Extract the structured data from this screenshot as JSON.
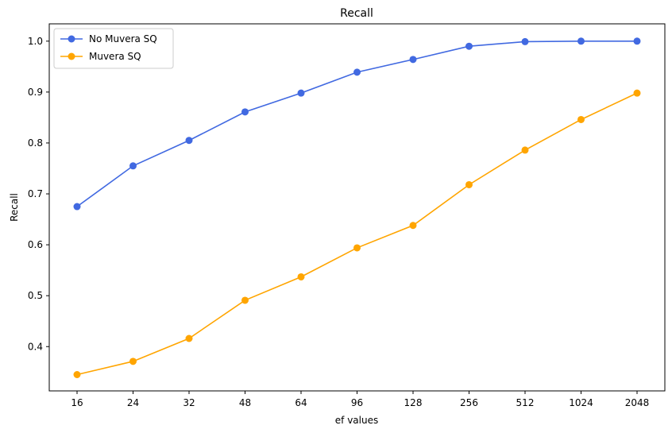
{
  "chart_data": {
    "type": "line",
    "title": "Recall",
    "xlabel": "ef values",
    "ylabel": "Recall",
    "categories": [
      "16",
      "24",
      "32",
      "48",
      "64",
      "96",
      "128",
      "256",
      "512",
      "1024",
      "2048"
    ],
    "ylim": [
      0.313,
      1.034
    ],
    "yticks": [
      0.4,
      0.5,
      0.6,
      0.7,
      0.8,
      0.9,
      1.0
    ],
    "ytick_labels": [
      "0.4",
      "0.5",
      "0.6",
      "0.7",
      "0.8",
      "0.9",
      "1.0"
    ],
    "legend_position": "upper-left",
    "series": [
      {
        "name": "No Muvera SQ",
        "color": "#4169e1",
        "values": [
          0.675,
          0.755,
          0.805,
          0.861,
          0.898,
          0.939,
          0.964,
          0.99,
          0.999,
          1.0,
          1.0
        ]
      },
      {
        "name": "Muvera SQ",
        "color": "#ffa500",
        "values": [
          0.345,
          0.371,
          0.416,
          0.491,
          0.537,
          0.594,
          0.638,
          0.718,
          0.786,
          0.846,
          0.898
        ]
      }
    ]
  }
}
